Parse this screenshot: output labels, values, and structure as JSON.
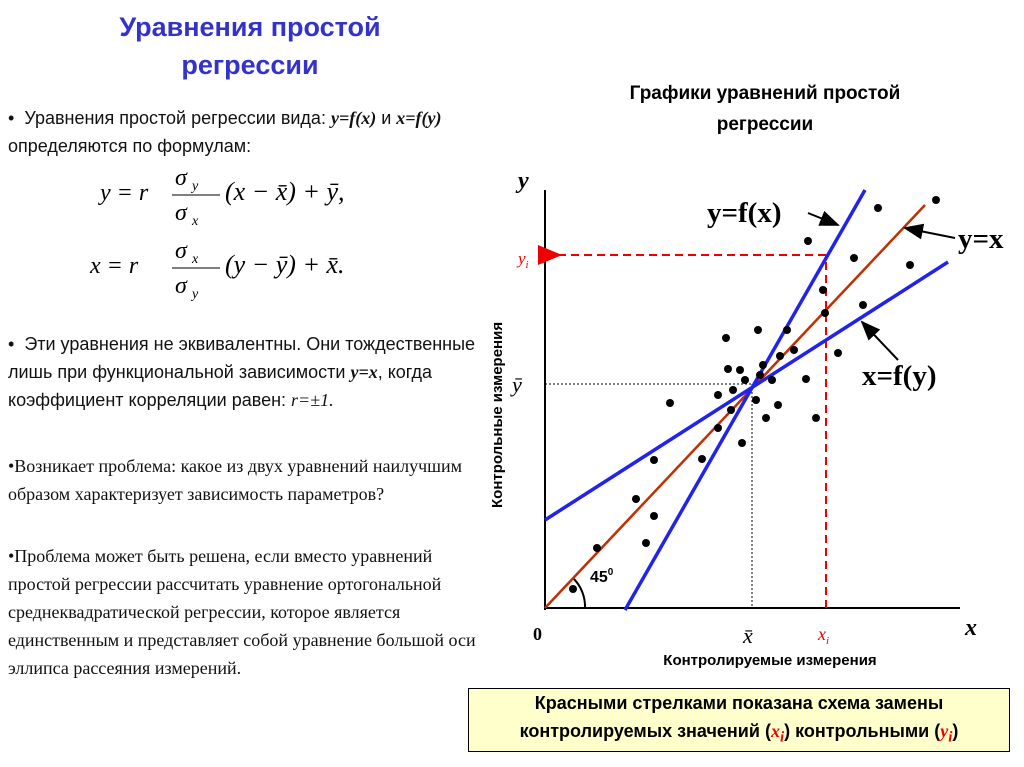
{
  "title": "Уравнения простой регрессии",
  "p1": [
    "Уравнения простой регрессии вида: ",
    "y=f(x)",
    " и ",
    "x=f(y)",
    " определяются по формулам:"
  ],
  "formulas": [
    {
      "lhs": "y = r",
      "num": "σ",
      "num_sub": "y",
      "den": "σ",
      "den_sub": "x",
      "rest": "(x − x̄) + ȳ,"
    },
    {
      "lhs": "x = r",
      "num": "σ",
      "num_sub": "x",
      "den": "σ",
      "den_sub": "y",
      "rest": "(y − ȳ) + x̄."
    }
  ],
  "p2": [
    "Эти уравнения не эквивалентны. Они тождественные лишь при функциональной зависимости ",
    "y=x",
    ", когда коэффициент корреляции равен: ",
    "r=±1."
  ],
  "p3": "•Возникает проблема: какое из двух уравнений наилучшим образом характеризует зависимость параметров?",
  "p4": "•Проблема может быть решена, если вместо уравнений простой регрессии рассчитать уравнение ортогональной среднеквадратической регрессии, которое является единственным и представляет собой уравнение большой оси эллипса рассеяния измерений.",
  "diagram": {
    "title": "Графики уравнений простой регрессии",
    "y_axis": "y",
    "x_axis": "x",
    "origin": "0",
    "y_title": "Контрольные измерения",
    "x_title": "Контролируемые измерения",
    "yi": [
      "y",
      "i"
    ],
    "xi": [
      "x",
      "i"
    ],
    "ybar": "ȳ",
    "xbar": "x̄",
    "angle": [
      "45",
      "0"
    ],
    "line_yx": "y=f(x)",
    "line_diag": "y=x",
    "line_xy": "x=f(y)"
  },
  "caption": [
    "Красными стрелками показана схема замены контролируемых значений (",
    "x",
    "i",
    ") контрольными (",
    "y",
    "i",
    ")"
  ]
}
